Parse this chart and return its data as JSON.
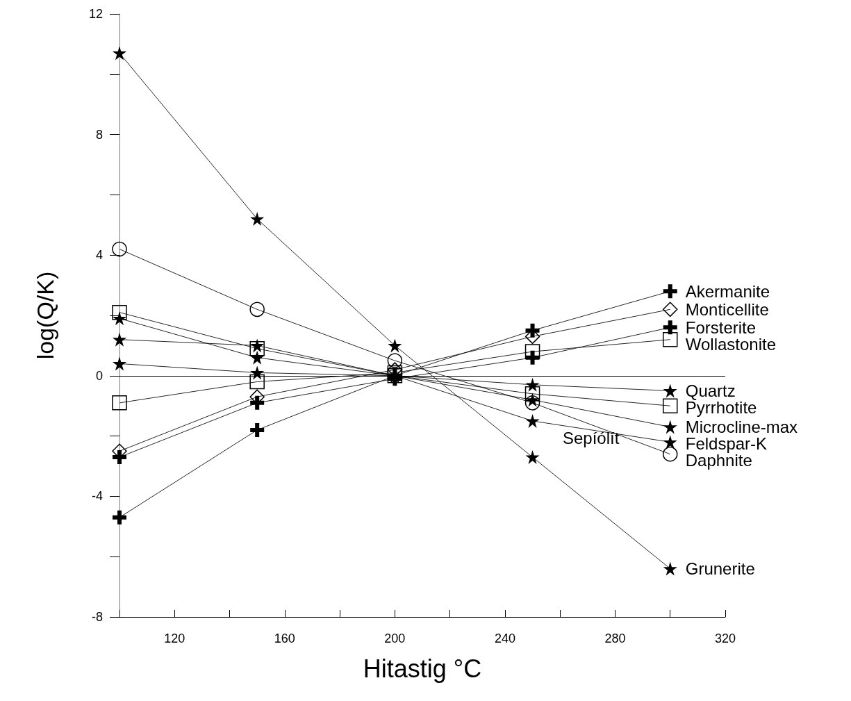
{
  "chart_data": {
    "type": "line",
    "xlabel": "Hitastig °C",
    "ylabel": "log(Q/K)",
    "x": [
      100,
      150,
      200,
      250,
      300
    ],
    "xlim": [
      100,
      320
    ],
    "xticks": [
      {
        "value": 100,
        "label": null
      },
      120,
      {
        "value": 140,
        "label": null
      },
      160,
      {
        "value": 180,
        "label": null
      },
      200,
      {
        "value": 220,
        "label": null
      },
      240,
      {
        "value": 260,
        "label": null
      },
      280,
      {
        "value": 300,
        "label": null
      },
      320
    ],
    "ylim": [
      -8,
      12
    ],
    "yticks": [
      -8,
      {
        "value": -6,
        "label": null
      },
      -4,
      {
        "value": -2,
        "label": null
      },
      0,
      {
        "value": 2,
        "label": null
      },
      4,
      {
        "value": 6,
        "label": null
      },
      8,
      {
        "value": 10,
        "label": null
      },
      12
    ],
    "grid": false,
    "legend": false,
    "ref_lines": [
      {
        "axis": "y",
        "value": 0,
        "color": "#000000"
      }
    ],
    "annotations": [
      "Sepíólít"
    ],
    "series": [
      {
        "name": "Akermanite",
        "color": "#000000",
        "marker": "cross",
        "values": [
          -4.7,
          -1.8,
          0,
          1.5,
          2.8
        ]
      },
      {
        "name": "Monticellite",
        "color": "#000000",
        "marker": "diamond",
        "values": [
          -2.5,
          -0.7,
          0.2,
          1.3,
          2.2
        ]
      },
      {
        "name": "Forsterite",
        "color": "#000000",
        "marker": "cross",
        "values": [
          -2.7,
          -0.9,
          -0.1,
          0.6,
          1.6
        ]
      },
      {
        "name": "Wollastonite",
        "color": "#000000",
        "marker": "square",
        "values": [
          -0.9,
          -0.2,
          0.1,
          0.8,
          1.2
        ]
      },
      {
        "name": "Quartz",
        "color": "#000000",
        "marker": "star",
        "values": [
          0.4,
          0.1,
          0,
          -0.3,
          -0.5
        ]
      },
      {
        "name": "Pyrrhotite",
        "color": "#000000",
        "marker": "square",
        "values": [
          2.1,
          0.9,
          0,
          -0.6,
          -1.0
        ]
      },
      {
        "name": "Microcline-max",
        "color": "#000000",
        "marker": "star",
        "values": [
          1.9,
          0.6,
          0,
          -0.8,
          -1.7
        ]
      },
      {
        "name": "Feldspar-K",
        "color": "#000000",
        "marker": "star",
        "values": [
          1.2,
          1.0,
          0,
          -1.5,
          -2.2
        ]
      },
      {
        "name": "Daphnite",
        "color": "#000000",
        "marker": "circle",
        "values": [
          4.2,
          2.2,
          0.5,
          -0.9,
          -2.6
        ]
      },
      {
        "name": "Grunerite",
        "color": "#000000",
        "marker": "star",
        "values": [
          10.7,
          5.2,
          1.0,
          -2.7,
          -6.4
        ]
      }
    ]
  }
}
